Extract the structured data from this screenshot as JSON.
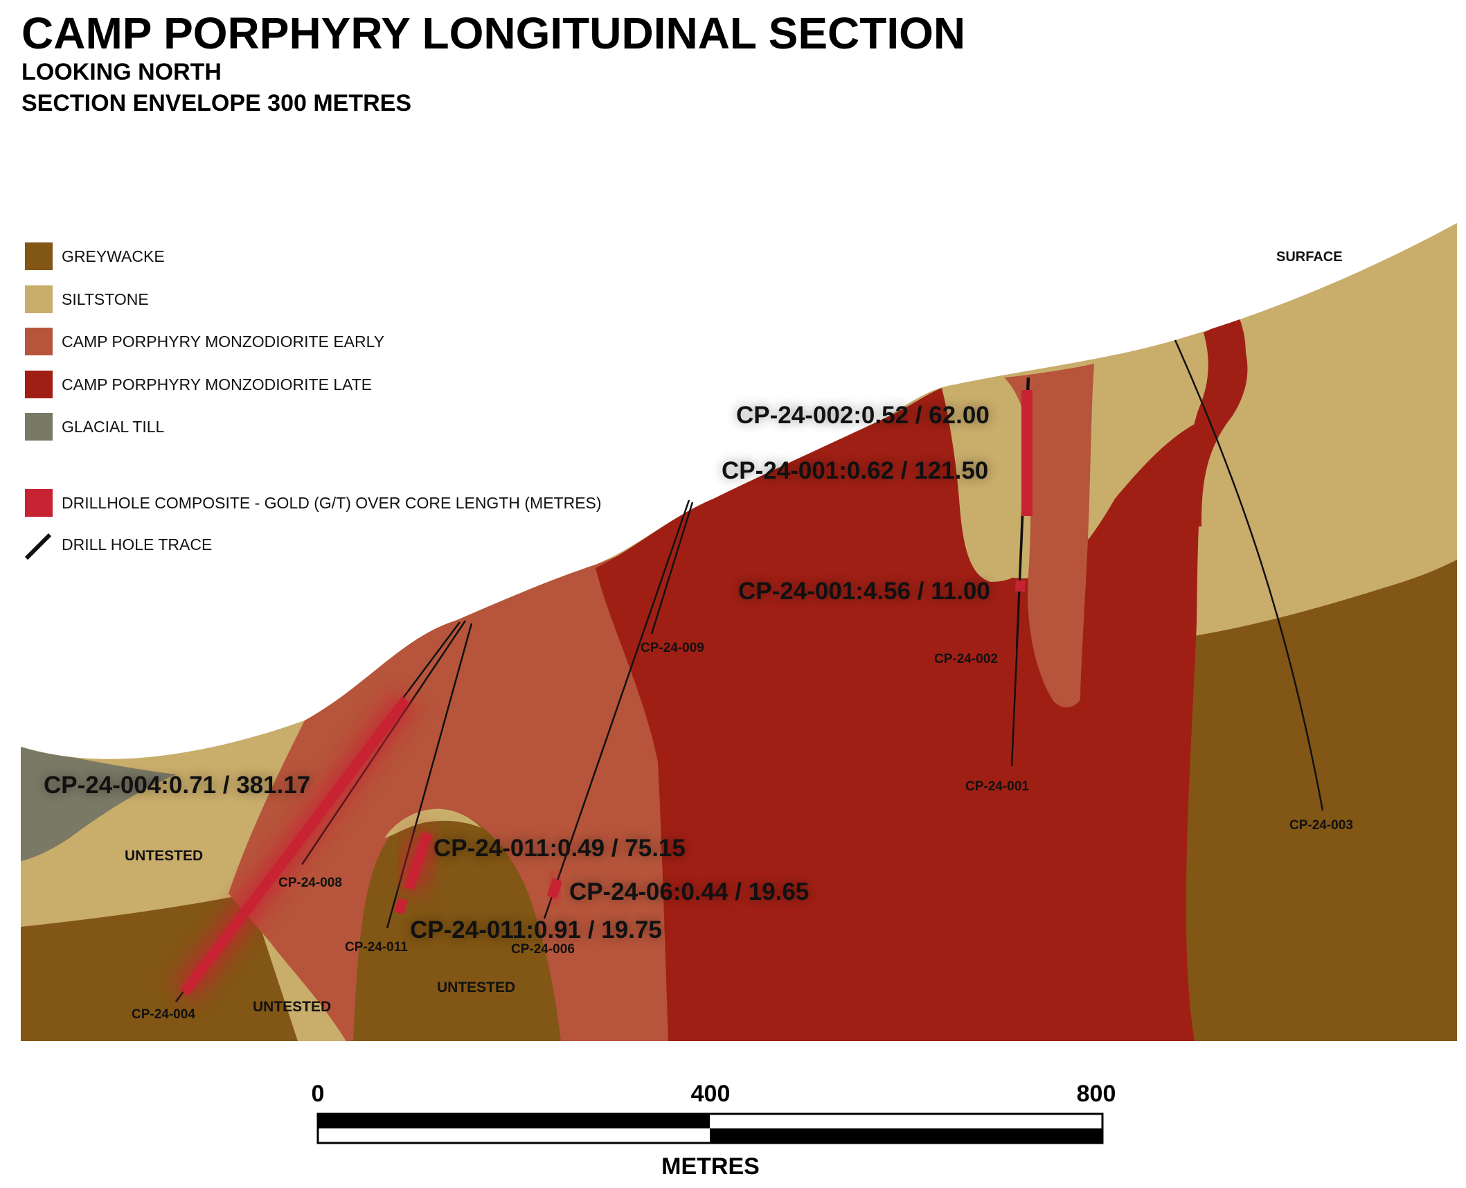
{
  "title": "CAMP PORPHYRY LONGITUDINAL SECTION",
  "subtitle_1": "LOOKING NORTH",
  "subtitle_2": "SECTION ENVELOPE 300 METRES",
  "colors": {
    "greywacke": "#825614",
    "siltstone": "#c9ad6b",
    "monzodiorite_early": "#b6553b",
    "monzodiorite_late": "#a01f14",
    "glacial_till": "#7a7966",
    "composite": "#c82333",
    "trace": "#111111"
  },
  "legend": {
    "greywacke": "GREYWACKE",
    "siltstone": "SILTSTONE",
    "early": "CAMP PORPHYRY MONZODIORITE EARLY",
    "late": "CAMP PORPHYRY MONZODIORITE LATE",
    "till": "GLACIAL TILL",
    "composite": "DRILLHOLE COMPOSITE - GOLD (G/T) OVER CORE LENGTH (METRES)",
    "trace": "DRILL HOLE TRACE"
  },
  "labels": {
    "surface": "SURFACE",
    "untested_1": "UNTESTED",
    "untested_2": "UNTESTED",
    "untested_3": "UNTESTED"
  },
  "holes": {
    "cp004": "CP-24-004",
    "cp008": "CP-24-008",
    "cp011": "CP-24-011",
    "cp006": "CP-24-006",
    "cp009": "CP-24-009",
    "cp002": "CP-24-002",
    "cp001": "CP-24-001",
    "cp003": "CP-24-003"
  },
  "intercepts": {
    "cp002": "CP-24-002:0.52 / 62.00",
    "cp001a": "CP-24-001:0.62 / 121.50",
    "cp001b": "CP-24-001:4.56 / 11.00",
    "cp004": "CP-24-004:0.71 / 381.17",
    "cp011a": "CP-24-011:0.49 / 75.15",
    "cp006": "CP-24-06:0.44 / 19.65",
    "cp011b": "CP-24-011:0.91 / 19.75"
  },
  "scale": {
    "tick_0": "0",
    "tick_400": "400",
    "tick_800": "800",
    "unit": "METRES"
  }
}
